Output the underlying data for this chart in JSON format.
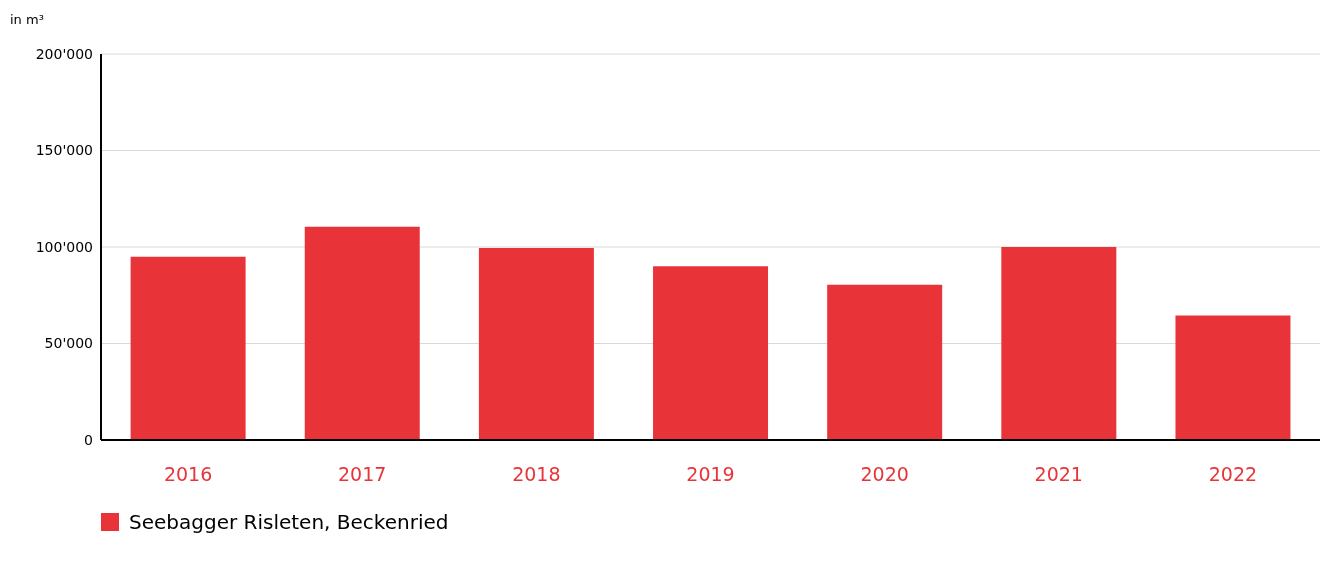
{
  "chart_data": {
    "type": "bar",
    "ylabel": "in m³",
    "categories": [
      "2016",
      "2017",
      "2018",
      "2019",
      "2020",
      "2021",
      "2022"
    ],
    "series": [
      {
        "name": "Seebagger Risleten, Beckenried",
        "color": "#e83338",
        "values": [
          95000,
          110500,
          99500,
          90000,
          80500,
          100000,
          64500
        ]
      }
    ],
    "ylim": [
      0,
      200000
    ],
    "yticks": [
      {
        "value": 0,
        "label": "0"
      },
      {
        "value": 50000,
        "label": "50'000"
      },
      {
        "value": 100000,
        "label": "100'000"
      },
      {
        "value": 150000,
        "label": "150'000"
      },
      {
        "value": 200000,
        "label": "200'000"
      }
    ],
    "grid": "y",
    "legend": "bottom left"
  }
}
